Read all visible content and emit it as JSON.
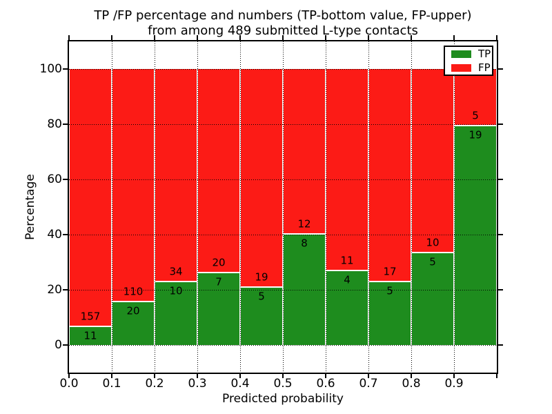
{
  "colors": {
    "tp_green": "#1e8c1e",
    "fp_red": "#fc1b16",
    "background": "#ffffff",
    "text": "#000000",
    "grid": "#000000",
    "bar_edge_white": "#ffffff"
  },
  "chart_data": {
    "type": "bar",
    "stacked": true,
    "normalized": "each bin scaled to 100%",
    "title_line1": "TP /FP percentage and numbers (TP-bottom value, FP-upper)",
    "title_line2": "from among 489 submitted L-type contacts",
    "xlabel": "Predicted probability",
    "ylabel": "Percentage",
    "total_submitted": 489,
    "xlim": [
      0.0,
      1.0
    ],
    "ylim": [
      -10,
      110
    ],
    "x_tick_labels": [
      "0.0",
      "0.1",
      "0.2",
      "0.3",
      "0.4",
      "0.5",
      "0.6",
      "0.7",
      "0.8",
      "0.9"
    ],
    "y_ticks": [
      0,
      20,
      40,
      60,
      80,
      100
    ],
    "y_tick_labels": [
      "0",
      "20",
      "40",
      "60",
      "80",
      "100"
    ],
    "grid": {
      "style": "dotted",
      "on": true
    },
    "categories": [
      "0.0-0.1",
      "0.1-0.2",
      "0.2-0.3",
      "0.3-0.4",
      "0.4-0.5",
      "0.5-0.6",
      "0.6-0.7",
      "0.7-0.8",
      "0.8-0.9",
      "0.9-1.0"
    ],
    "series": [
      {
        "name": "TP",
        "color": "#1e8c1e",
        "counts": [
          11,
          20,
          10,
          7,
          5,
          8,
          4,
          5,
          5,
          19
        ]
      },
      {
        "name": "FP",
        "color": "#fc1b16",
        "counts": [
          157,
          110,
          34,
          20,
          19,
          12,
          11,
          17,
          10,
          5
        ]
      }
    ],
    "tp_percent_by_bin": [
      6.5,
      15.4,
      22.7,
      25.9,
      20.8,
      40.0,
      26.7,
      22.7,
      33.3,
      79.2
    ],
    "legend": {
      "position": "upper right",
      "entries": [
        {
          "label": "TP",
          "color": "#1e8c1e"
        },
        {
          "label": "FP",
          "color": "#fc1b16"
        }
      ]
    }
  }
}
